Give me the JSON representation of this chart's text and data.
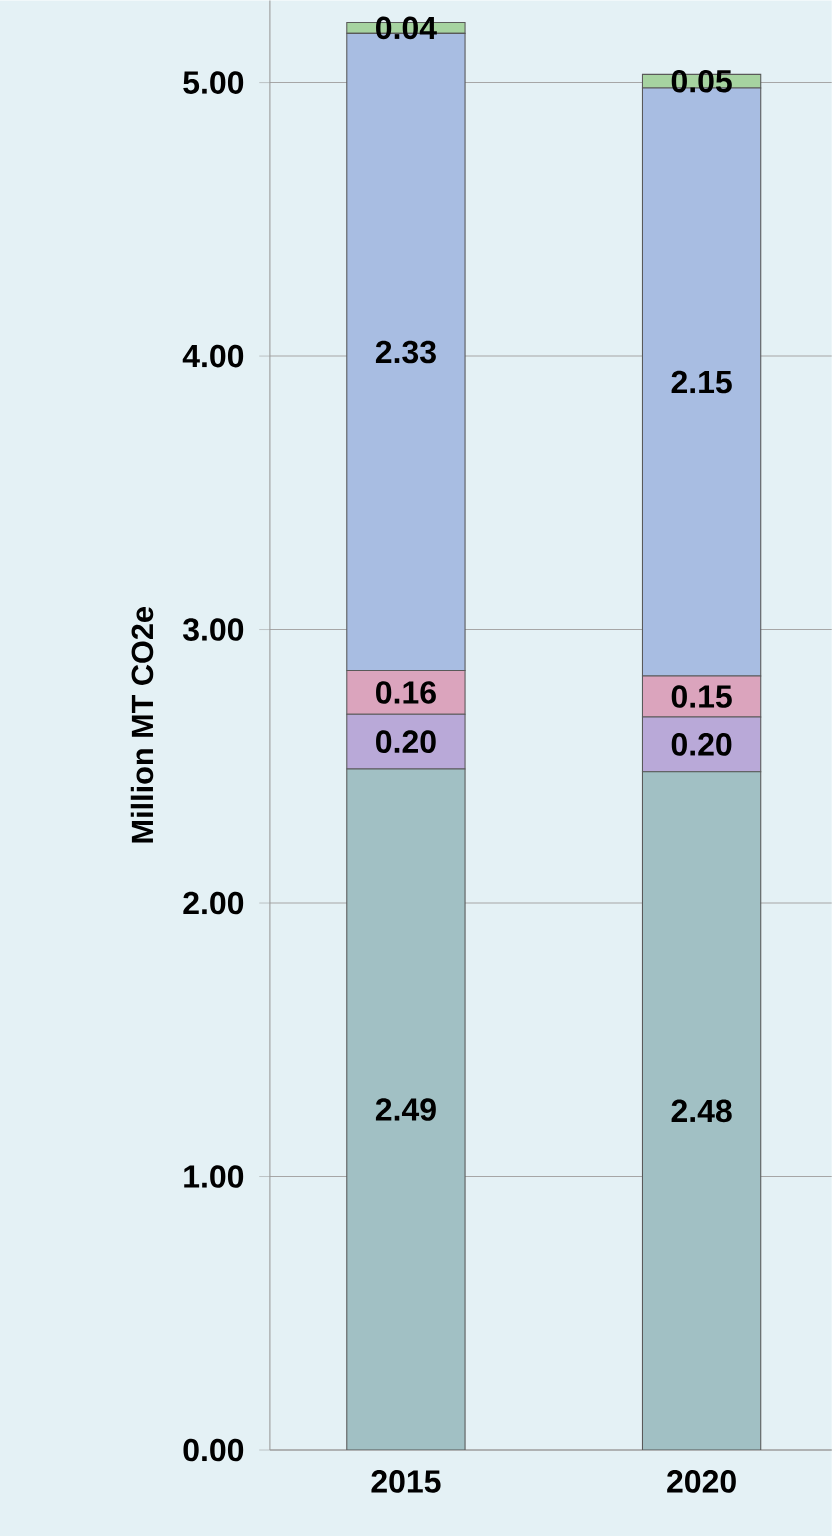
{
  "chart_data": {
    "type": "bar",
    "stacked": true,
    "ylabel": "Million MT CO2e",
    "categories": [
      "2015",
      "2020"
    ],
    "ylim": [
      0,
      5.3
    ],
    "yticks": [
      {
        "value": 0,
        "label": "0.00"
      },
      {
        "value": 1,
        "label": "1.00"
      },
      {
        "value": 2,
        "label": "2.00"
      },
      {
        "value": 3,
        "label": "3.00"
      },
      {
        "value": 4,
        "label": "4.00"
      },
      {
        "value": 5,
        "label": "5.00"
      }
    ],
    "grid": "y",
    "series": [
      {
        "color": "#a1c0c4",
        "values": [
          2.49,
          2.48
        ],
        "value_labels": [
          "2.49",
          "2.48"
        ]
      },
      {
        "color": "#b9a9d8",
        "values": [
          0.2,
          0.2
        ],
        "value_labels": [
          "0.20",
          "0.20"
        ]
      },
      {
        "color": "#dba4bd",
        "values": [
          0.16,
          0.15
        ],
        "value_labels": [
          "0.16",
          "0.15"
        ]
      },
      {
        "color": "#a8bde2",
        "values": [
          2.33,
          2.15
        ],
        "value_labels": [
          "2.33",
          "2.15"
        ]
      },
      {
        "color": "#a6d3a0",
        "values": [
          0.04,
          0.05
        ],
        "value_labels": [
          "0.04",
          "0.05"
        ]
      }
    ]
  }
}
